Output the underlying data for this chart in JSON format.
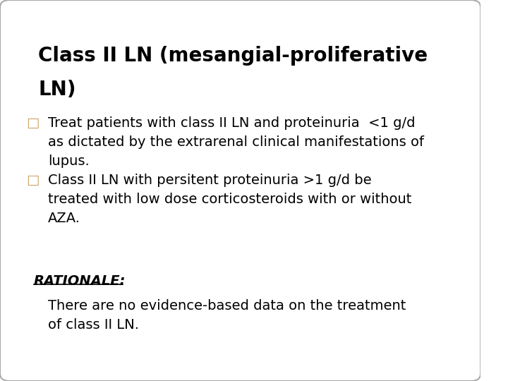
{
  "title_line1": "Class II LN (mesangial-proliferative",
  "title_line2": "LN)",
  "bullet1_marker": "□",
  "bullet1_line1": "Treat patients with class II LN and proteinuria  <1 g/d",
  "bullet1_line2": "as dictated by the extrarenal clinical manifestations of",
  "bullet1_line3": "lupus.",
  "bullet2_marker": "□",
  "bullet2_line1": "Class II LN with persitent proteinuria >1 g/d be",
  "bullet2_line2": "treated with low dose corticosteroids with or without",
  "bullet2_line3": "AZA.",
  "rationale_label": "RATIONALE:",
  "rationale_line1": "There are no evidence-based data on the treatment",
  "rationale_line2": "of class II LN.",
  "background_color": "#ffffff",
  "border_color": "#aaaaaa",
  "title_color": "#000000",
  "body_color": "#000000",
  "rationale_color": "#000000",
  "bullet_marker_color": "#c8a060",
  "title_fontsize": 20,
  "body_fontsize": 14,
  "rationale_fontsize": 14
}
